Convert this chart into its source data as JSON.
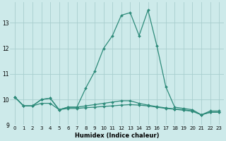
{
  "x": [
    0,
    1,
    2,
    3,
    4,
    5,
    6,
    7,
    8,
    9,
    10,
    11,
    12,
    13,
    14,
    15,
    16,
    17,
    18,
    19,
    20,
    21,
    22,
    23
  ],
  "line1": [
    10.1,
    9.75,
    9.75,
    10.0,
    10.05,
    9.6,
    9.7,
    9.7,
    10.45,
    11.1,
    12.0,
    12.5,
    13.3,
    13.4,
    12.5,
    13.5,
    12.1,
    10.5,
    9.7,
    9.65,
    9.6,
    9.4,
    9.55,
    9.55
  ],
  "line2": [
    10.1,
    9.75,
    9.75,
    10.0,
    10.05,
    9.6,
    9.7,
    9.7,
    9.75,
    9.8,
    9.85,
    9.9,
    9.95,
    9.95,
    9.85,
    9.78,
    9.72,
    9.67,
    9.63,
    9.6,
    9.55,
    9.4,
    9.5,
    9.5
  ],
  "line3": [
    10.1,
    9.75,
    9.75,
    9.85,
    9.85,
    9.6,
    9.65,
    9.65,
    9.68,
    9.7,
    9.73,
    9.75,
    9.78,
    9.8,
    9.78,
    9.75,
    9.7,
    9.65,
    9.62,
    9.58,
    9.54,
    9.4,
    9.5,
    9.5
  ],
  "line_color": "#2e8b7a",
  "bg_color": "#cdeaea",
  "grid_color": "#a8cece",
  "xlabel": "Humidex (Indice chaleur)",
  "ylim": [
    9.0,
    13.8
  ],
  "xlim": [
    -0.5,
    23.5
  ],
  "yticks": [
    9,
    10,
    11,
    12,
    13
  ],
  "xticks": [
    0,
    1,
    2,
    3,
    4,
    5,
    6,
    7,
    8,
    9,
    10,
    11,
    12,
    13,
    14,
    15,
    16,
    17,
    18,
    19,
    20,
    21,
    22,
    23
  ],
  "marker_size": 2.0,
  "line_width": 0.9,
  "tick_fontsize": 5.0,
  "xlabel_fontsize": 6.0
}
